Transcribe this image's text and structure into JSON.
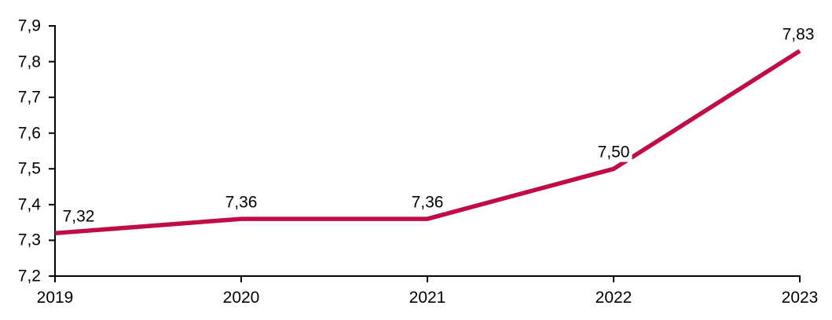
{
  "chart_data": {
    "type": "line",
    "title": "",
    "xlabel": "",
    "ylabel": "",
    "categories": [
      "2019",
      "2020",
      "2021",
      "2022",
      "2023"
    ],
    "series": [
      {
        "name": "value",
        "values": [
          7.32,
          7.36,
          7.36,
          7.5,
          7.83
        ]
      }
    ],
    "data_labels": [
      "7,32",
      "7,36",
      "7,36",
      "7,50",
      "7,83"
    ],
    "y_ticks": [
      7.2,
      7.3,
      7.4,
      7.5,
      7.6,
      7.7,
      7.8,
      7.9
    ],
    "y_tick_labels": [
      "7,2",
      "7,3",
      "7,4",
      "7,5",
      "7,6",
      "7,7",
      "7,8",
      "7,9"
    ],
    "ylim": [
      7.2,
      7.9
    ],
    "grid": false,
    "legend_position": "none",
    "decimal_separator": ",",
    "colors": {
      "line": "#C00B45",
      "axis": "#000000",
      "text": "#000000",
      "background": "#FFFFFF"
    }
  }
}
